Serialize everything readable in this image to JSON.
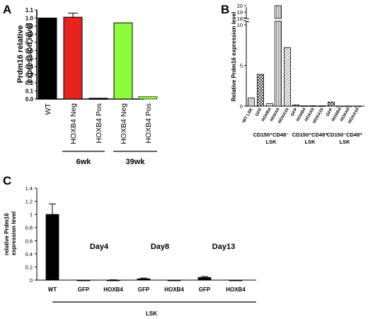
{
  "panels": {
    "a": "A",
    "b": "B",
    "c": "C"
  },
  "colors": {
    "wt": "#000000",
    "neg6": "#e8231e",
    "pos6": "#000000",
    "neg39": "#8dfa3c",
    "pos39": "#8dfa3c",
    "lsk_bar": "#000000"
  },
  "chart_data": [
    {
      "panel": "A",
      "type": "bar",
      "ylabel": "Prdm16 relative expression level",
      "ylim": [
        0,
        1.1
      ],
      "yticks": [
        "0.0",
        "0.1",
        "0.2",
        "0.3",
        "0.4",
        "0.5",
        "0.6",
        "0.7",
        "0.8",
        "0.9",
        "1.0",
        "1.1"
      ],
      "categories": [
        "WT",
        "HOXB4 Neg",
        "HOXB4 Pos",
        "HOXB4 Neg",
        "HOXB4 Pos"
      ],
      "values": [
        1.0,
        1.01,
        0.01,
        0.94,
        0.03
      ],
      "errors": [
        0,
        0.05,
        0,
        0,
        0
      ],
      "groups": [
        {
          "label": "6wk",
          "categories": [
            "HOXB4 Neg",
            "HOXB4 Pos"
          ]
        },
        {
          "label": "39wk",
          "categories": [
            "HOXB4 Neg",
            "HOXB4 Pos"
          ]
        }
      ]
    },
    {
      "panel": "B",
      "type": "bar",
      "ylabel": "Relative Prdm16 expression level",
      "ylim": [
        0,
        20
      ],
      "axis_break": [
        10,
        18
      ],
      "yticks": [
        "0",
        "5",
        "10",
        "18",
        "19",
        "20"
      ],
      "categories": [
        "WT LSK",
        "GFP",
        "HOXB4",
        "HOXA9",
        "HOXA10",
        "GFP",
        "HOXB4",
        "HOXA9",
        "HOXA10",
        "GFP",
        "HOXB4",
        "HOXA9",
        "HOXA10"
      ],
      "values": [
        1.0,
        3.9,
        0.3,
        20.0,
        7.2,
        0.15,
        0.05,
        0.05,
        0.05,
        0.5,
        0.02,
        0.02,
        0.02
      ],
      "groups": [
        {
          "label": "CD150⁺CD48⁻ LSK",
          "line1": "CD150⁺CD48⁻",
          "line2": "LSK"
        },
        {
          "label": "CD150⁺CD48⁺ LSK",
          "line1": "CD150⁺CD48⁺",
          "line2": "LSK"
        },
        {
          "label": "CD150⁻CD48⁺ LSK",
          "line1": "CD150⁻CD48⁺",
          "line2": "LSK"
        }
      ]
    },
    {
      "panel": "C",
      "type": "bar",
      "ylabel": "relative Prdm16 expression level",
      "ylabel_lines": [
        "relative Prdm16",
        "expression level"
      ],
      "ylim": [
        0,
        1.4
      ],
      "yticks": [
        "0",
        "0.2",
        "0.4",
        "0.6",
        "0.8",
        "1",
        "1.2",
        "1.4"
      ],
      "categories": [
        "WT",
        "GFP",
        "HOXB4",
        "GFP",
        "HOXB4",
        "GFP",
        "HOXB4"
      ],
      "values": [
        1.0,
        0.0,
        0.0,
        0.02,
        0.0,
        0.04,
        0.0
      ],
      "errors": [
        0.16,
        0,
        0.005,
        0.01,
        0,
        0.015,
        0
      ],
      "annotations": [
        "Day4",
        "Day8",
        "Day13"
      ],
      "group_label": "LSK"
    }
  ]
}
